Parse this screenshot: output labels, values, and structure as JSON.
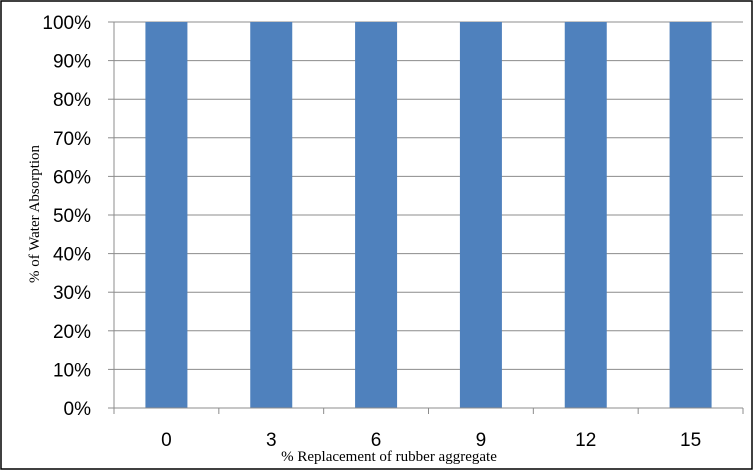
{
  "chart_data": {
    "type": "bar",
    "categories": [
      "0",
      "3",
      "6",
      "9",
      "12",
      "15"
    ],
    "series": [
      {
        "values": [
          100,
          100,
          100,
          100,
          100,
          100
        ],
        "color": "#4F81BD"
      }
    ],
    "xlabel": "% Replacement of  rubber aggregate",
    "ylabel": "% of Water Absorption",
    "ylim": [
      0,
      100
    ],
    "yticks": [
      "0%",
      "10%",
      "20%",
      "30%",
      "40%",
      "50%",
      "60%",
      "70%",
      "80%",
      "90%",
      "100%"
    ],
    "grid": true,
    "legend": "none"
  }
}
